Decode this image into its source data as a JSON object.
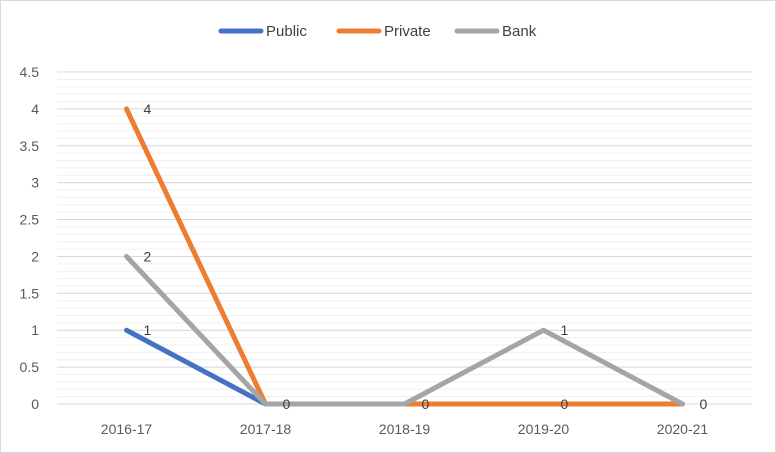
{
  "chart_data": {
    "type": "line",
    "categories": [
      "2016-17",
      "2017-18",
      "2018-19",
      "2019-20",
      "2020-21"
    ],
    "ylim": [
      0,
      4.5
    ],
    "yticks": [
      "0",
      "0.5",
      "1",
      "1.5",
      "2",
      "2.5",
      "3",
      "3.5",
      "4",
      "4.5"
    ],
    "grid": true,
    "legend_position": "top",
    "series": [
      {
        "name": "Public",
        "color": "#4472C4",
        "values": [
          1,
          0,
          null,
          null,
          null
        ],
        "labels": [
          "1",
          "",
          "",
          "",
          ""
        ]
      },
      {
        "name": "Private",
        "color": "#ED7D31",
        "values": [
          4,
          0,
          0,
          0,
          0
        ],
        "labels": [
          "4",
          "",
          "",
          "0",
          ""
        ]
      },
      {
        "name": "Bank",
        "color": "#A5A5A5",
        "values": [
          2,
          0,
          0,
          1,
          0
        ],
        "labels": [
          "2",
          "0",
          "0",
          "1",
          "0"
        ]
      }
    ]
  }
}
